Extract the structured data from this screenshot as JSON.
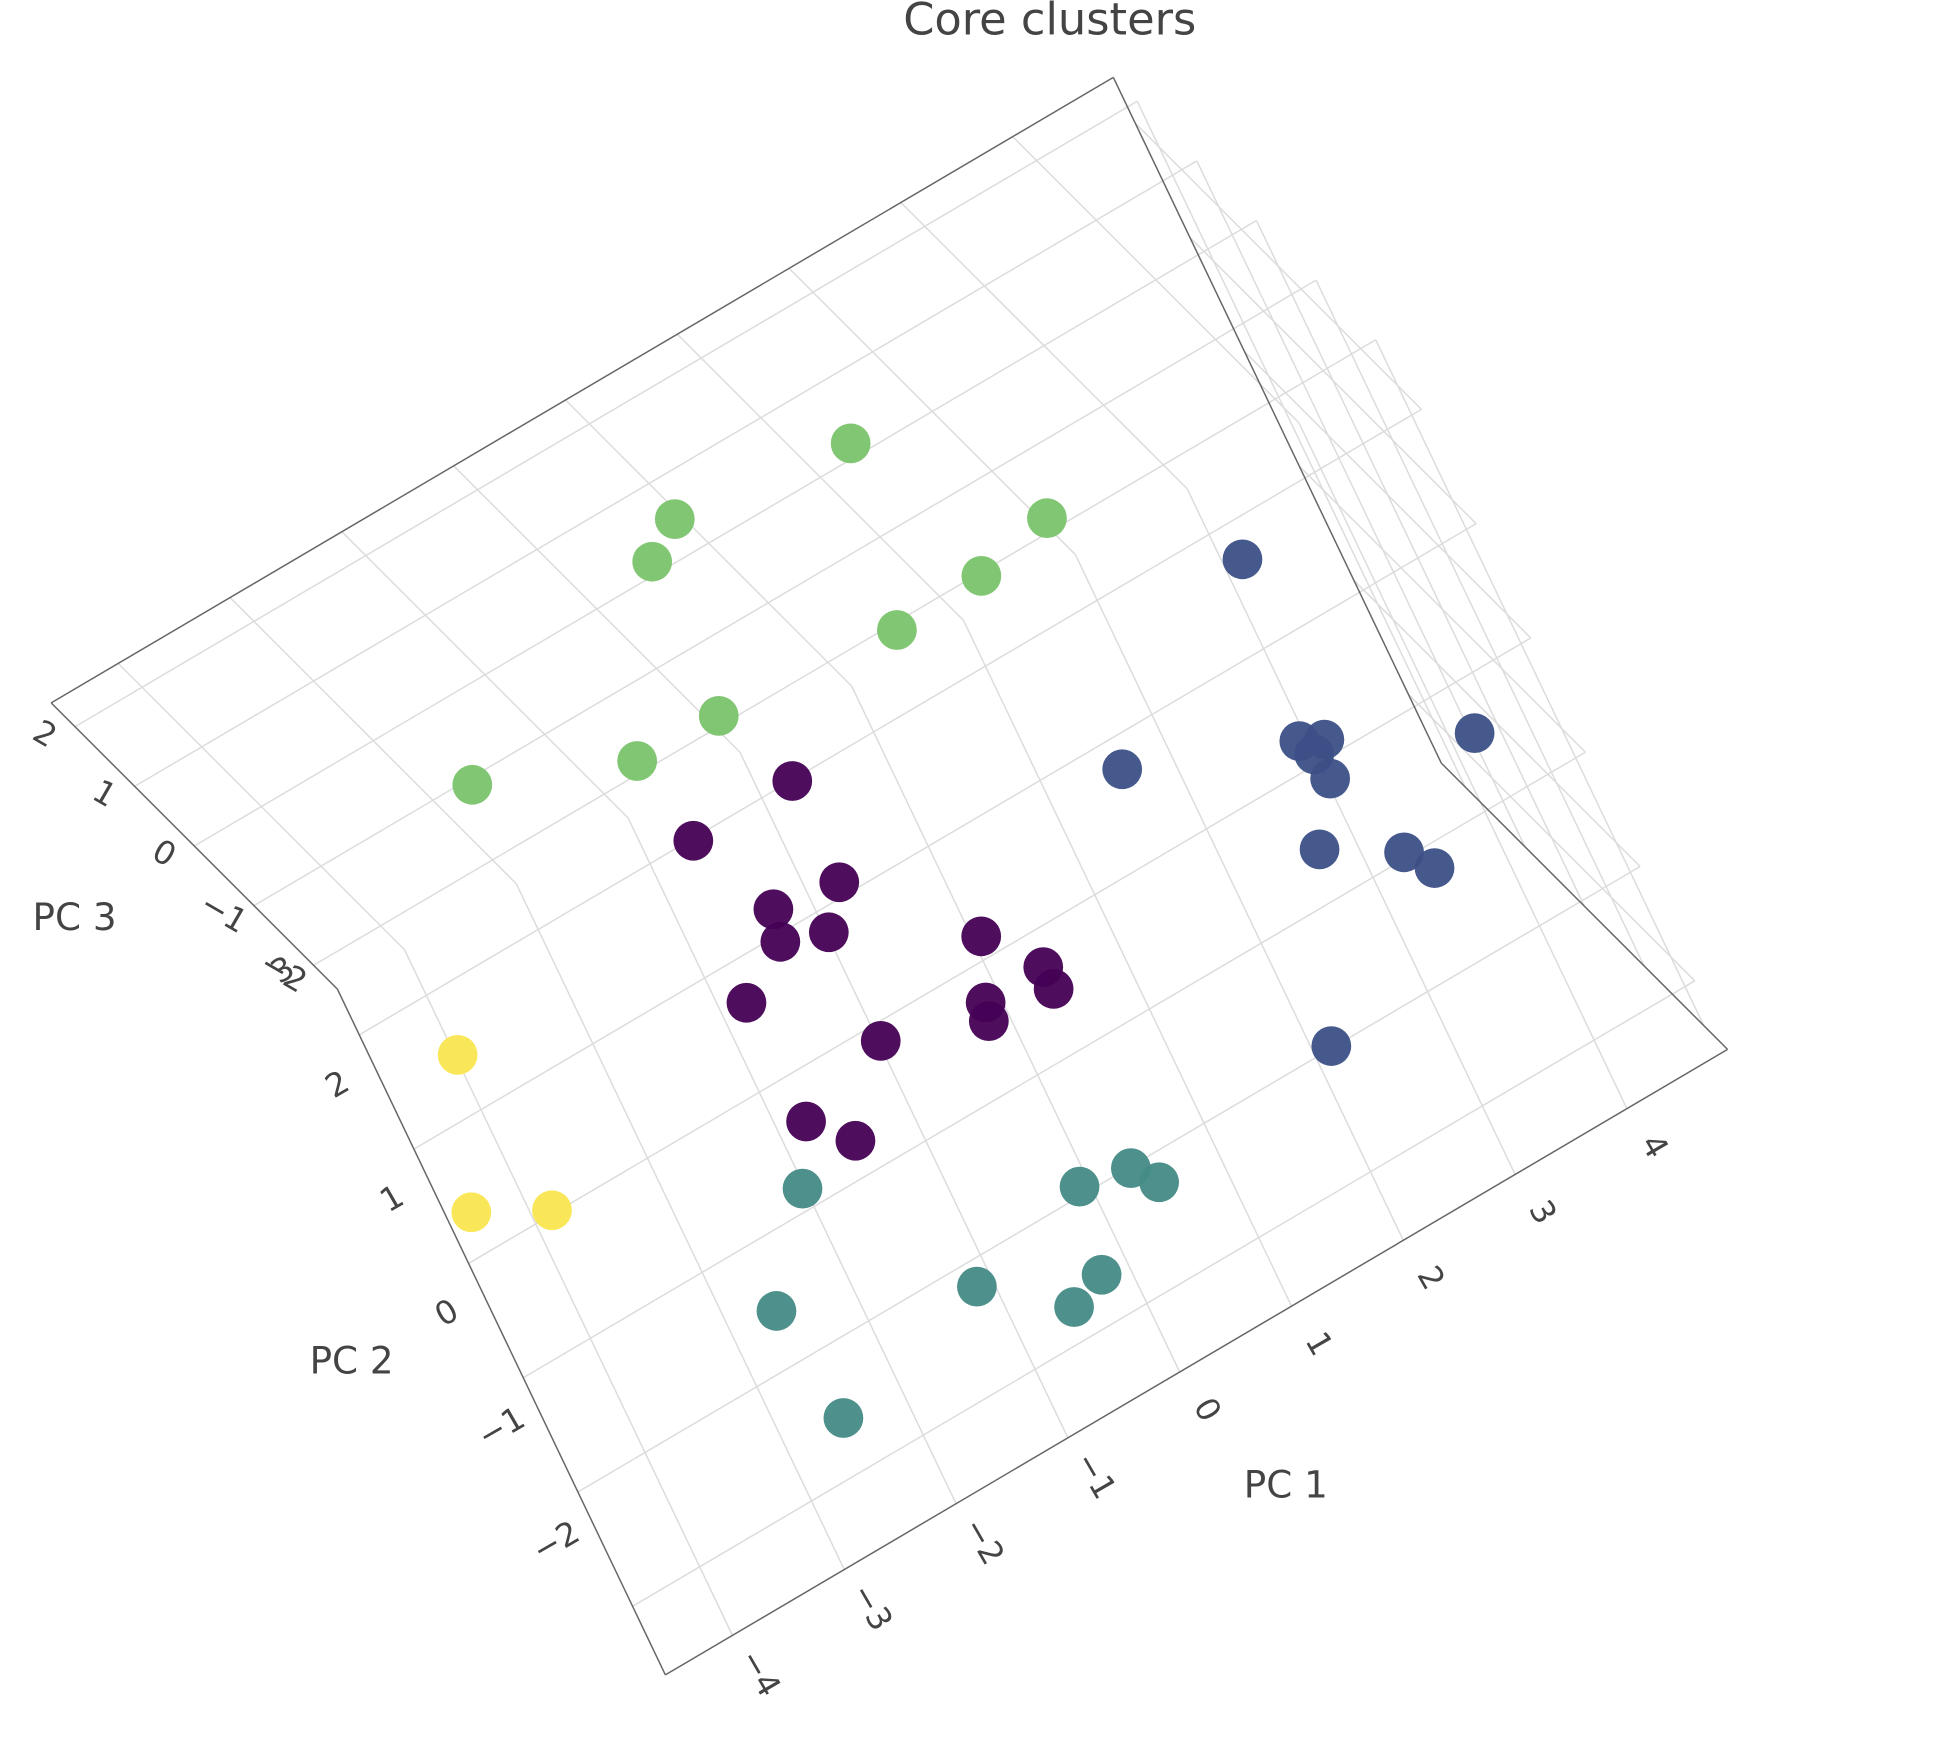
{
  "chart_data": {
    "type": "scatter3d",
    "title": "Core clusters",
    "xlabel": "PC 1",
    "ylabel": "PC 2",
    "zlabel": "PC 3",
    "grid": true,
    "xlim": [
      -4.6,
      4.9
    ],
    "ylim": [
      -2.6,
      3.4
    ],
    "zlim": [
      -2.4,
      2.4
    ],
    "xticks": [
      {
        "value": -4,
        "label": "−4"
      },
      {
        "value": -3,
        "label": "−3"
      },
      {
        "value": -2,
        "label": "−2"
      },
      {
        "value": -1,
        "label": "−1"
      },
      0,
      1,
      2,
      3,
      4
    ],
    "yticks": [
      {
        "value": -2,
        "label": "−2"
      },
      {
        "value": -1,
        "label": "−1"
      },
      0,
      1,
      2,
      3
    ],
    "zticks": [
      {
        "value": -2,
        "label": "−2"
      },
      {
        "value": -1,
        "label": "−1"
      },
      0,
      1,
      2
    ],
    "series": [
      {
        "color": "#7ac36a",
        "x": [
          1.65,
          0.17,
          -0.13,
          2.77,
          2.12,
          1.35,
          -0.18,
          -0.9,
          -2.13
        ],
        "y": [
          2.54,
          2.73,
          2.53,
          1.24,
          1.11,
          1.08,
          1.21,
          1.23,
          1.73
        ],
        "z": [
          1.5,
          1.5,
          1.5,
          1.5,
          1.5,
          1.5,
          1.5,
          1.5,
          1.5
        ]
      },
      {
        "color": "#440154",
        "x": [
          -0.21,
          -1.1,
          -0.22,
          -0.77,
          -0.83,
          -0.46,
          0.59,
          0.92,
          0.92,
          -1.27,
          0.4,
          0.36,
          -0.46,
          -1.25,
          -0.97
        ],
        "y": [
          1.44,
          1.43,
          0.56,
          0.64,
          0.39,
          0.26,
          -0.38,
          -0.84,
          -1.03,
          0.11,
          -0.85,
          -0.99,
          -0.69,
          -0.94,
          -1.27
        ],
        "z": [
          0,
          0,
          0,
          0,
          0,
          0,
          0,
          0,
          0,
          0,
          0,
          0,
          0,
          0,
          0
        ]
      },
      {
        "color": "#3c5087",
        "x": [
          3.78,
          4.82,
          3.57,
          3.75,
          3.63,
          3.66,
          2.24,
          3.35,
          3.93,
          4.09,
          2.45
        ],
        "y": [
          0.82,
          -1.3,
          -0.65,
          -0.74,
          -0.8,
          -1.03,
          -0.13,
          -1.47,
          -1.83,
          -2.06,
          -1.89
        ],
        "z": [
          0.5,
          0.5,
          0.5,
          0.5,
          0.5,
          0.5,
          0.5,
          0.5,
          0.5,
          0.5,
          -1
        ]
      },
      {
        "color": "#458b86",
        "x": [
          -1.89,
          0.05,
          0.47,
          0.62,
          -0.09,
          -1.0,
          -0.39,
          -2.48,
          -2.37
        ],
        "y": [
          -0.22,
          -1.32,
          -1.4,
          -1.61,
          -2.01,
          -1.59,
          -2.12,
          -0.95,
          -1.95
        ],
        "z": [
          -1.8,
          -1.8,
          -1.8,
          -1.8,
          -1.8,
          -1.8,
          -1.8,
          -1.8,
          -1.8
        ]
      },
      {
        "color": "#fae650",
        "x": [
          -3.85,
          -4.28,
          -3.71
        ],
        "y": [
          2.08,
          0.95,
          0.64
        ],
        "z": [
          -1.8,
          -1.8,
          -1.8
        ]
      }
    ]
  }
}
